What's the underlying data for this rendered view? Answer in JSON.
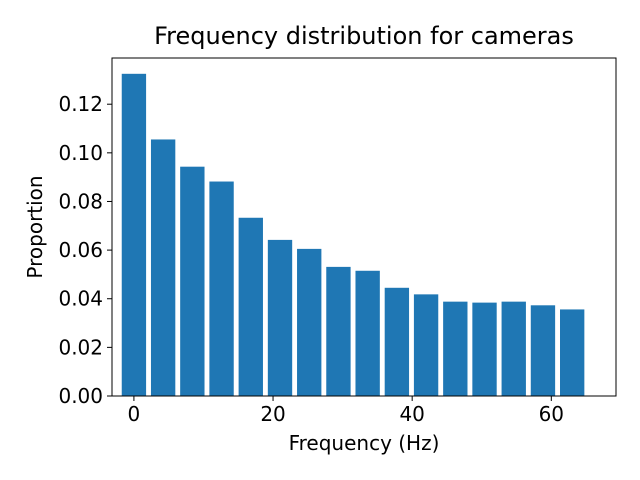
{
  "chart_data": {
    "type": "bar",
    "title": "Frequency distribution for cameras",
    "xlabel": "Frequency (Hz)",
    "ylabel": "Proportion",
    "x": [
      0,
      4.2,
      8.4,
      12.6,
      16.8,
      21,
      25.2,
      29.4,
      33.6,
      37.8,
      42,
      46.2,
      50.4,
      54.6,
      58.8,
      63
    ],
    "values": [
      0.1325,
      0.1055,
      0.0943,
      0.0882,
      0.0733,
      0.0642,
      0.0605,
      0.0531,
      0.0515,
      0.0445,
      0.0418,
      0.0388,
      0.0384,
      0.0388,
      0.0373,
      0.0356
    ],
    "bar_width": 3.5,
    "xlim": [
      -3.15,
      69.3
    ],
    "ylim": [
      0,
      0.139
    ],
    "xticks": [
      0,
      20,
      40,
      60
    ],
    "xtick_labels": [
      "0",
      "20",
      "40",
      "60"
    ],
    "yticks": [
      0,
      0.02,
      0.04,
      0.06,
      0.08,
      0.1,
      0.12
    ],
    "ytick_labels": [
      "0.00",
      "0.02",
      "0.04",
      "0.06",
      "0.08",
      "0.10",
      "0.12"
    ],
    "bar_color": "#1f77b4",
    "grid": false,
    "legend": "none"
  }
}
